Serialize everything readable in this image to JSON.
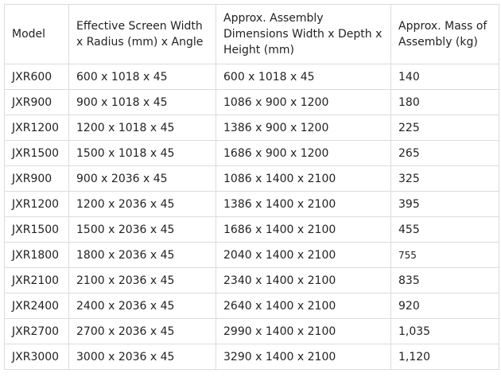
{
  "table": {
    "headers": [
      "Model",
      "Effective Screen Width x Radius (mm) x Angle",
      "Approx. Assembly Dimensions Width x Depth x Height (mm)",
      "Approx. Mass of Assembly (kg)"
    ],
    "rows": [
      [
        "JXR600",
        "600 x 1018 x 45",
        "600 x 1018 x 45",
        "140"
      ],
      [
        "JXR900",
        "900 x 1018 x 45",
        "1086 x 900 x 1200",
        "180"
      ],
      [
        "JXR1200",
        "1200 x 1018 x 45",
        "1386 x 900 x 1200",
        "225"
      ],
      [
        "JXR1500",
        "1500 x 1018 x 45",
        "1686 x 900 x 1200",
        "265"
      ],
      [
        "JXR900",
        "900 x 2036 x 45",
        "1086 x 1400 x 2100",
        "325"
      ],
      [
        "JXR1200",
        "1200 x 2036 x 45",
        "1386 x 1400 x 2100",
        "395"
      ],
      [
        "JXR1500",
        "1500 x 2036 x 45",
        "1686 x 1400 x 2100",
        "455"
      ],
      [
        "JXR1800",
        "1800 x 2036 x 45",
        "2040 x 1400 x 2100",
        "755"
      ],
      [
        "JXR2100",
        "2100 x 2036 x 45",
        "2340 x 1400 x 2100",
        "835"
      ],
      [
        "JXR2400",
        "2400 x 2036 x 45",
        "2640 x 1400 x 2100",
        "920"
      ],
      [
        "JXR2700",
        "2700 x 2036 x 45",
        "2990 x 1400 x 2100",
        "1,035"
      ],
      [
        "JXR3000",
        "3000 x 2036 x 45",
        "3290 x 1400 x 2100",
        "1,120"
      ]
    ]
  }
}
